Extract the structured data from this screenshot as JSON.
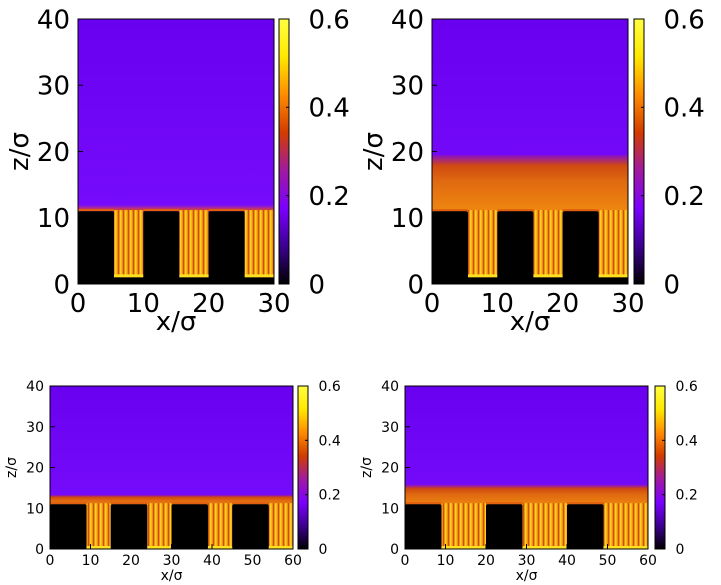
{
  "chart_data": [
    {
      "type": "heatmap",
      "xlabel": "x/σ",
      "ylabel": "z/σ",
      "xlim": [
        0,
        30
      ],
      "ylim": [
        0,
        40
      ],
      "xticks": [
        "0",
        "10",
        "20",
        "30"
      ],
      "yticks": [
        "0",
        "10",
        "20",
        "30",
        "40"
      ],
      "colorbar": {
        "range": [
          0,
          0.6
        ],
        "ticks": [
          "0",
          "0.2",
          "0.4",
          "0.6"
        ]
      },
      "colormap": [
        "#000000",
        "#3c0090",
        "#7a00ff",
        "#a01aa0",
        "#d23c00",
        "#ff8c00",
        "#ffe800",
        "#ffff40"
      ],
      "wall_top": 11,
      "pore_bottom": 1,
      "pillars": [
        [
          0,
          5.5
        ],
        [
          10,
          15.5
        ],
        [
          20,
          25.5
        ]
      ],
      "liquid_top": 11.5,
      "background_level": 0.11
    },
    {
      "type": "heatmap",
      "xlabel": "x/σ",
      "ylabel": "z/σ",
      "xlim": [
        0,
        30
      ],
      "ylim": [
        0,
        40
      ],
      "xticks": [
        "0",
        "10",
        "20",
        "30"
      ],
      "yticks": [
        "0",
        "10",
        "20",
        "30",
        "40"
      ],
      "colorbar": {
        "range": [
          0,
          0.6
        ],
        "ticks": [
          "0",
          "0.2",
          "0.4",
          "0.6"
        ]
      },
      "colormap": [
        "#000000",
        "#3c0090",
        "#7a00ff",
        "#a01aa0",
        "#d23c00",
        "#ff8c00",
        "#ffe800",
        "#ffff40"
      ],
      "wall_top": 11,
      "pore_bottom": 1,
      "pillars": [
        [
          0,
          5.5
        ],
        [
          10,
          15.5
        ],
        [
          20,
          25.5
        ]
      ],
      "liquid_top": 19,
      "background_level": 0.11
    },
    {
      "type": "heatmap",
      "xlabel": "x/σ",
      "ylabel": "z/σ",
      "xlim": [
        0,
        60
      ],
      "ylim": [
        0,
        40
      ],
      "xticks": [
        "0",
        "10",
        "20",
        "30",
        "40",
        "50",
        "60"
      ],
      "yticks": [
        "0",
        "10",
        "20",
        "30",
        "40"
      ],
      "colorbar": {
        "range": [
          0,
          0.6
        ],
        "ticks": [
          "0",
          "0.2",
          "0.4",
          "0.6"
        ]
      },
      "colormap": [
        "#000000",
        "#3c0090",
        "#7a00ff",
        "#a01aa0",
        "#d23c00",
        "#ff8c00",
        "#ffe800",
        "#ffff40"
      ],
      "wall_top": 11,
      "pore_bottom": 0,
      "pillars": [
        [
          0,
          9
        ],
        [
          15,
          24
        ],
        [
          30,
          39
        ],
        [
          45,
          54
        ]
      ],
      "liquid_top": 12.5,
      "background_level": 0.11
    },
    {
      "type": "heatmap",
      "xlabel": "x/σ",
      "ylabel": "z/σ",
      "xlim": [
        0,
        60
      ],
      "ylim": [
        0,
        40
      ],
      "xticks": [
        "0",
        "10",
        "20",
        "30",
        "40",
        "50",
        "60"
      ],
      "yticks": [
        "0",
        "10",
        "20",
        "30",
        "40"
      ],
      "colorbar": {
        "range": [
          0,
          0.6
        ],
        "ticks": [
          "0",
          "0.2",
          "0.4",
          "0.6"
        ]
      },
      "colormap": [
        "#000000",
        "#3c0090",
        "#7a00ff",
        "#a01aa0",
        "#d23c00",
        "#ff8c00",
        "#ffe800",
        "#ffff40"
      ],
      "wall_top": 11,
      "pore_bottom": 0,
      "pillars": [
        [
          0,
          9
        ],
        [
          20,
          29
        ],
        [
          40,
          49
        ]
      ],
      "liquid_top": 15,
      "background_level": 0.11
    }
  ]
}
